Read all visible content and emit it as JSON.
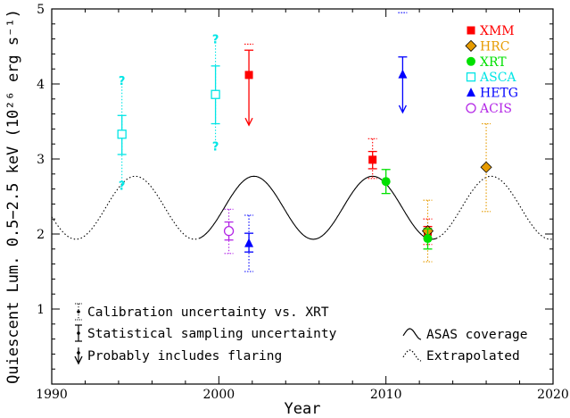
{
  "chart_data": {
    "type": "scatter",
    "title": "",
    "xlabel": "Year",
    "ylabel": "Quiescent Lum. 0.5−2.5 keV (10²⁶ erg s⁻¹)",
    "xlim": [
      1990,
      2020
    ],
    "ylim": [
      0,
      5
    ],
    "x_ticks": [
      1990,
      2000,
      2010,
      2020
    ],
    "y_ticks": [
      1,
      2,
      3,
      4,
      5
    ],
    "x_tick_labels": [
      "1990",
      "2000",
      "2010",
      "2020"
    ],
    "y_tick_labels": [
      "1",
      "2",
      "3",
      "4",
      "5"
    ],
    "legend_position": "top-right",
    "series": [
      {
        "name": "XMM",
        "color": "#ff0000",
        "marker": "filled-square",
        "points": [
          {
            "x": 2001.8,
            "y": 4.12,
            "stat": [
              4.45,
              3.45
            ],
            "calib": [
              4.53,
              4.53
            ],
            "flaring": true
          },
          {
            "x": 2009.2,
            "y": 2.99,
            "stat": [
              3.1,
              2.87
            ],
            "calib": [
              3.27,
              2.74
            ],
            "flaring": false
          },
          {
            "x": 2012.5,
            "y": 2.03,
            "stat": [
              2.1,
              1.95
            ],
            "calib": [
              2.2,
              1.86
            ],
            "flaring": false
          }
        ]
      },
      {
        "name": "HRC",
        "color": "#e69b00",
        "marker": "filled-diamond",
        "points": [
          {
            "x": 2012.5,
            "y": 2.04,
            "stat": null,
            "calib": [
              2.45,
              1.63
            ],
            "flaring": false
          },
          {
            "x": 2016.0,
            "y": 2.89,
            "stat": null,
            "calib": [
              3.47,
              2.3
            ],
            "flaring": false
          }
        ]
      },
      {
        "name": "XRT",
        "color": "#00e000",
        "marker": "filled-circle",
        "points": [
          {
            "x": 2010.0,
            "y": 2.7,
            "stat": [
              2.86,
              2.54
            ],
            "calib": null,
            "flaring": false
          },
          {
            "x": 2012.5,
            "y": 1.94,
            "stat": [
              2.07,
              1.8
            ],
            "calib": null,
            "flaring": false
          }
        ]
      },
      {
        "name": "ASCA",
        "color": "#00e5e5",
        "marker": "open-square",
        "points": [
          {
            "x": 1994.2,
            "y": 3.33,
            "stat": [
              3.58,
              3.06
            ],
            "calib": [
              4.05,
              2.65
            ],
            "calib_marker": "?",
            "flaring": false
          },
          {
            "x": 1999.8,
            "y": 3.86,
            "stat": [
              4.24,
              3.47
            ],
            "calib": [
              4.6,
              3.17
            ],
            "calib_marker": "?",
            "flaring": false
          }
        ]
      },
      {
        "name": "HETG",
        "color": "#0000ff",
        "marker": "filled-triangle",
        "points": [
          {
            "x": 2001.8,
            "y": 1.88,
            "stat": [
              2.01,
              1.76
            ],
            "calib": [
              2.25,
              1.5
            ],
            "flaring": false
          },
          {
            "x": 2011.0,
            "y": 4.13,
            "stat": [
              4.36,
              3.62
            ],
            "calib": [
              4.95,
              4.95
            ],
            "flaring": true
          }
        ]
      },
      {
        "name": "ACIS",
        "color": "#b326e6",
        "marker": "open-circle",
        "points": [
          {
            "x": 2000.6,
            "y": 2.04,
            "stat": [
              2.16,
              1.92
            ],
            "calib": [
              2.33,
              1.74
            ],
            "flaring": false
          }
        ]
      }
    ],
    "sinusoid": {
      "min": 1.93,
      "max": 2.77,
      "first_peak_year": 1995.0,
      "period_years": 7.1,
      "solid_range": [
        1998.8,
        2013.0
      ],
      "solid_label": "ASAS coverage",
      "dotted_label": "Extrapolated"
    },
    "notes": [
      "Calibration uncertainty vs. XRT",
      "Statistical sampling uncertainty",
      "Probably includes flaring"
    ]
  }
}
